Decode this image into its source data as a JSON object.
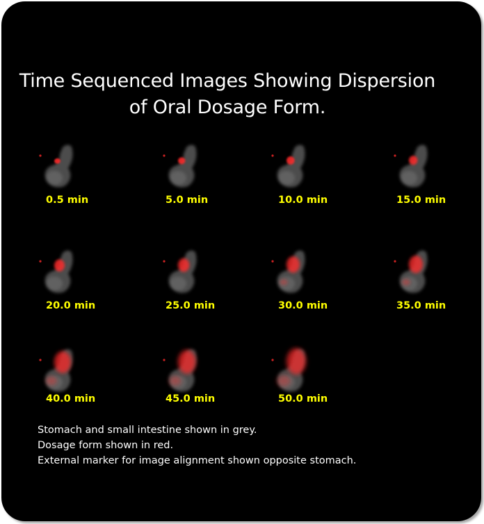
{
  "title": {
    "line1": "Time Sequenced Images Showing Dispersion",
    "line2": "of Oral Dosage Form."
  },
  "frames": [
    {
      "label": "0.5 min",
      "red_level": 0.05
    },
    {
      "label": "5.0 min",
      "red_level": 0.12
    },
    {
      "label": "10.0 min",
      "red_level": 0.18
    },
    {
      "label": "15.0 min",
      "red_level": 0.22
    },
    {
      "label": "20.0 min",
      "red_level": 0.35
    },
    {
      "label": "25.0 min",
      "red_level": 0.42
    },
    {
      "label": "30.0 min",
      "red_level": 0.55
    },
    {
      "label": "35.0 min",
      "red_level": 0.6
    },
    {
      "label": "40.0 min",
      "red_level": 0.8
    },
    {
      "label": "45.0 min",
      "red_level": 0.88
    },
    {
      "label": "50.0 min",
      "red_level": 1.0
    }
  ],
  "caption": {
    "line1": "Stomach and small intestine shown in grey.",
    "line2": "Dosage form shown in red.",
    "line3": "External marker for image alignment shown opposite stomach."
  },
  "colors": {
    "background": "#000000",
    "title": "#ffffff",
    "label": "#ffff00",
    "tissue": "#8a8a8a",
    "dosage": "#ff2a2a"
  }
}
